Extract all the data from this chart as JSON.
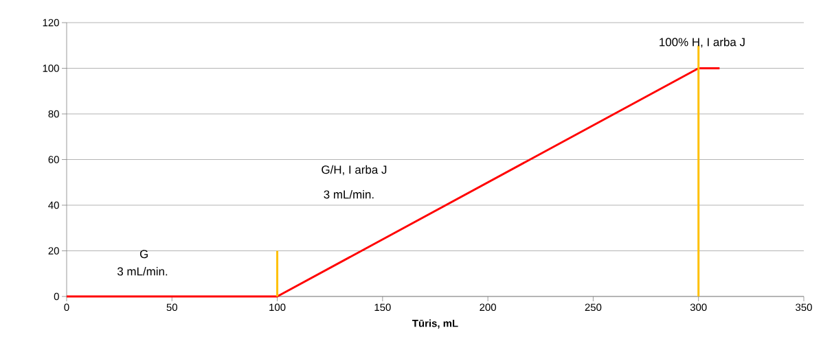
{
  "chart_data": {
    "type": "line",
    "xlabel": "Tūris, mL",
    "xlim": [
      0,
      350
    ],
    "xticks": [
      0,
      50,
      100,
      150,
      200,
      250,
      300,
      350
    ],
    "ylim": [
      0,
      120
    ],
    "yticks": [
      0,
      20,
      40,
      60,
      80,
      100,
      120
    ],
    "grid": "y",
    "marker": "none",
    "line_style": "solid",
    "series": [
      {
        "color": "#ff0000",
        "x": [
          0,
          100,
          300,
          310
        ],
        "values": [
          0,
          0,
          100,
          100
        ]
      },
      {
        "color": "#ffc000",
        "x": [
          100,
          100
        ],
        "values": [
          0,
          20
        ]
      },
      {
        "color": "#ffc000",
        "x": [
          300,
          300
        ],
        "values": [
          0,
          110
        ]
      }
    ],
    "annotations": [
      "G",
      "3 mL/min.",
      "G/H, I arba J",
      "3 mL/min.",
      "100% H, I arba J"
    ]
  }
}
